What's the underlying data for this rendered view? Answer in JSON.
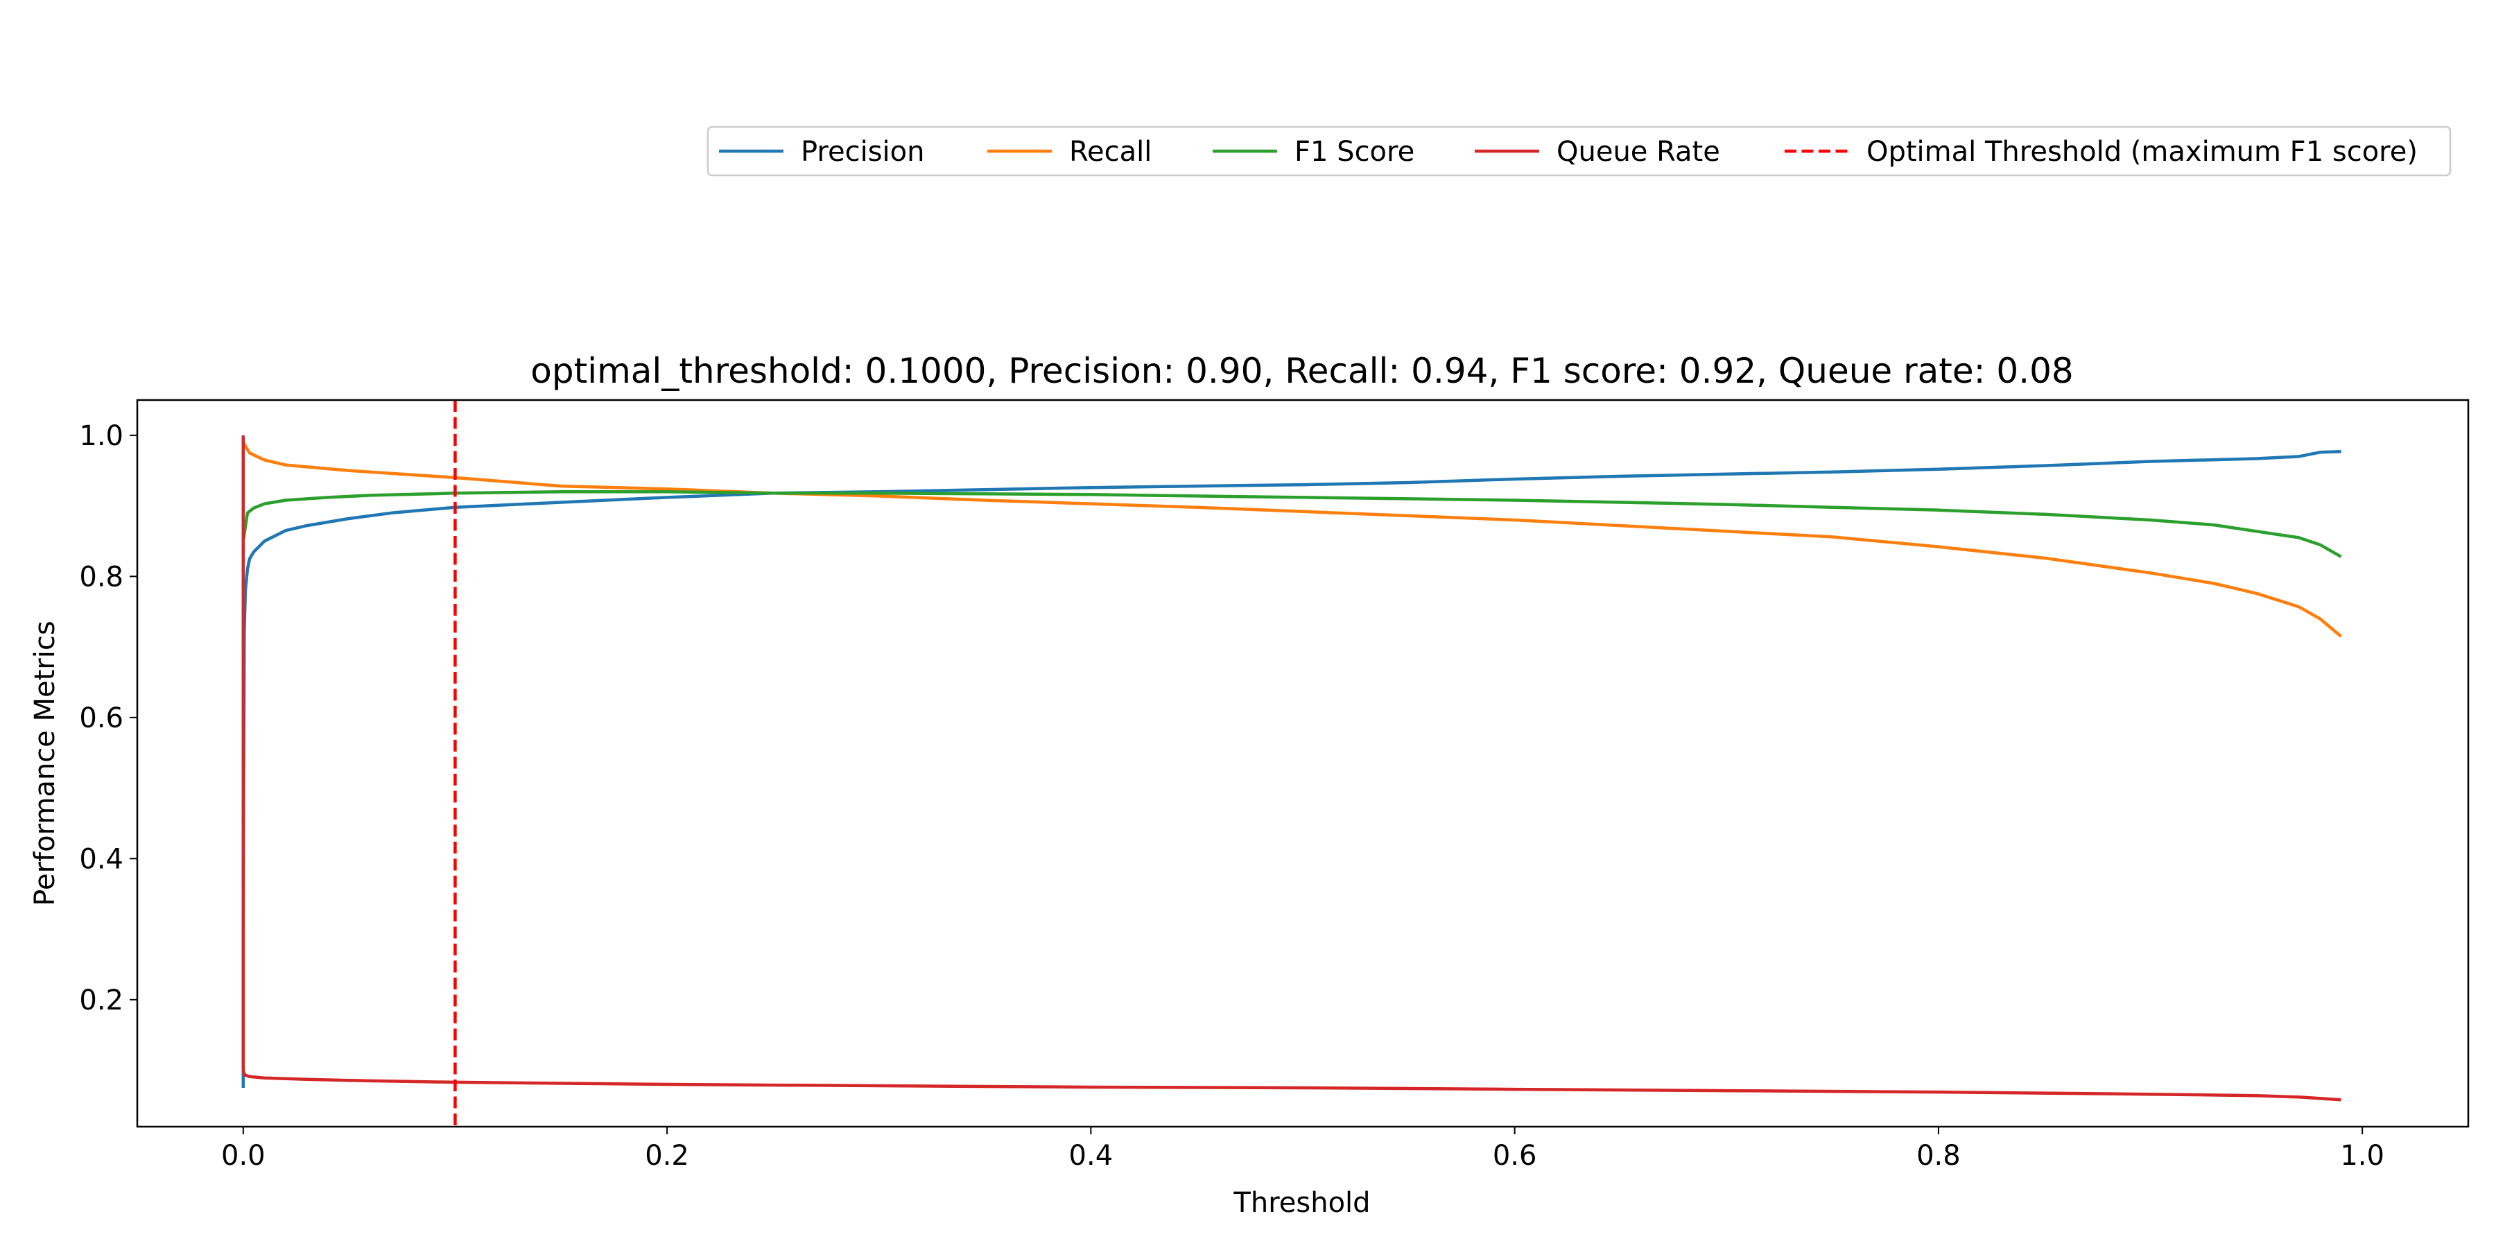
{
  "chart_data": {
    "type": "line",
    "title": "optimal_threshold: 0.1000, Precision: 0.90, Recall: 0.94, F1 score: 0.92, Queue rate: 0.08",
    "xlabel": "Threshold",
    "ylabel": "Performance Metrics",
    "xlim": [
      -0.05,
      1.05
    ],
    "ylim": [
      0.02,
      1.05
    ],
    "xticks": [
      0.0,
      0.2,
      0.4,
      0.6,
      0.8,
      1.0
    ],
    "xtick_labels": [
      "0.0",
      "0.2",
      "0.4",
      "0.6",
      "0.8",
      "1.0"
    ],
    "yticks": [
      0.2,
      0.4,
      0.6,
      0.8,
      1.0
    ],
    "ytick_labels": [
      "0.2",
      "0.4",
      "0.6",
      "0.8",
      "1.0"
    ],
    "grid": false,
    "legend_position": "top-right, above plot",
    "series": [
      {
        "name": "Precision",
        "color": "#1f77b4",
        "x": [
          0.0,
          0.0,
          0.0005,
          0.001,
          0.002,
          0.003,
          0.005,
          0.01,
          0.02,
          0.03,
          0.05,
          0.07,
          0.1,
          0.15,
          0.2,
          0.25,
          0.3,
          0.35,
          0.4,
          0.45,
          0.5,
          0.55,
          0.6,
          0.65,
          0.7,
          0.75,
          0.8,
          0.85,
          0.9,
          0.95,
          0.97,
          0.98,
          0.99
        ],
        "y": [
          0.075,
          0.3,
          0.72,
          0.78,
          0.81,
          0.825,
          0.835,
          0.85,
          0.865,
          0.872,
          0.882,
          0.89,
          0.898,
          0.905,
          0.912,
          0.918,
          0.92,
          0.923,
          0.926,
          0.928,
          0.93,
          0.933,
          0.938,
          0.942,
          0.945,
          0.948,
          0.952,
          0.957,
          0.963,
          0.967,
          0.97,
          0.976,
          0.977
        ]
      },
      {
        "name": "Recall",
        "color": "#ff7f0e",
        "x": [
          0.0,
          0.003,
          0.01,
          0.02,
          0.05,
          0.08,
          0.1,
          0.15,
          0.2,
          0.25,
          0.3,
          0.35,
          0.4,
          0.45,
          0.5,
          0.55,
          0.6,
          0.65,
          0.7,
          0.75,
          0.8,
          0.85,
          0.9,
          0.93,
          0.95,
          0.97,
          0.98,
          0.99
        ],
        "y": [
          0.99,
          0.975,
          0.965,
          0.958,
          0.95,
          0.944,
          0.94,
          0.928,
          0.924,
          0.918,
          0.914,
          0.908,
          0.903,
          0.898,
          0.892,
          0.886,
          0.88,
          0.872,
          0.864,
          0.856,
          0.842,
          0.826,
          0.805,
          0.79,
          0.776,
          0.757,
          0.74,
          0.715
        ]
      },
      {
        "name": "F1 Score",
        "color": "#2ca02c",
        "x": [
          0.0,
          0.002,
          0.005,
          0.01,
          0.02,
          0.04,
          0.06,
          0.1,
          0.15,
          0.2,
          0.25,
          0.3,
          0.35,
          0.4,
          0.45,
          0.5,
          0.55,
          0.6,
          0.65,
          0.7,
          0.75,
          0.8,
          0.85,
          0.9,
          0.93,
          0.95,
          0.97,
          0.98,
          0.99
        ],
        "y": [
          0.85,
          0.89,
          0.897,
          0.903,
          0.908,
          0.912,
          0.915,
          0.918,
          0.92,
          0.92,
          0.918,
          0.918,
          0.917,
          0.916,
          0.914,
          0.912,
          0.91,
          0.908,
          0.905,
          0.902,
          0.898,
          0.894,
          0.888,
          0.88,
          0.873,
          0.864,
          0.855,
          0.845,
          0.828
        ]
      },
      {
        "name": "Queue Rate",
        "color": "#d62728",
        "x": [
          0.0,
          0.0,
          0.0005,
          0.001,
          0.003,
          0.01,
          0.03,
          0.06,
          0.1,
          0.2,
          0.3,
          0.4,
          0.5,
          0.6,
          0.7,
          0.8,
          0.9,
          0.95,
          0.97,
          0.99
        ],
        "y": [
          1.0,
          0.1,
          0.095,
          0.093,
          0.091,
          0.089,
          0.087,
          0.085,
          0.083,
          0.08,
          0.078,
          0.076,
          0.075,
          0.073,
          0.071,
          0.069,
          0.066,
          0.064,
          0.062,
          0.058
        ]
      }
    ],
    "reference_lines": [
      {
        "name": "Optimal Threshold (maximum F1 score)",
        "orientation": "vertical",
        "x": 0.1,
        "color": "#ff0000",
        "style": "dashed"
      }
    ]
  }
}
